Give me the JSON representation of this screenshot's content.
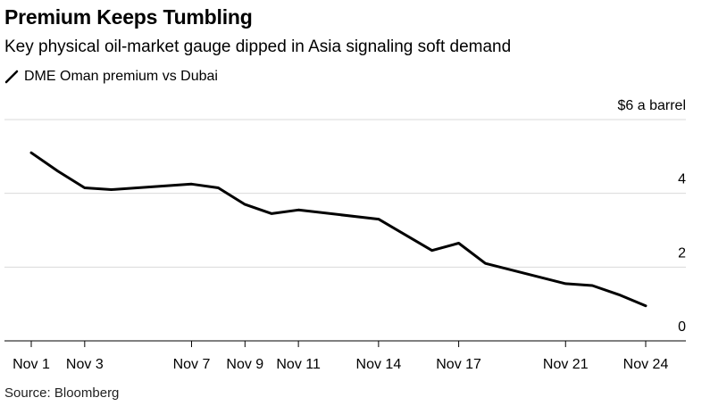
{
  "header": {
    "title": "Premium Keeps Tumbling",
    "subtitle": "Key physical oil-market gauge dipped in Asia signaling soft demand"
  },
  "legend": {
    "label": "DME Oman premium vs Dubai"
  },
  "source": "Source: Bloomberg",
  "colors": {
    "line": "#000000",
    "grid": "#d9d9d9",
    "axis": "#000000",
    "background": "#ffffff"
  },
  "chart_data": {
    "type": "line",
    "ylabel": "",
    "xlabel": "",
    "ylim": [
      0,
      6
    ],
    "y_ticks": [
      0,
      2,
      4,
      6
    ],
    "y_tick_labels": [
      "0",
      "2",
      "4",
      "$6 a barrel"
    ],
    "x_ticks": [
      "Nov 1",
      "Nov 3",
      "Nov 7",
      "Nov 9",
      "Nov 11",
      "Nov 14",
      "Nov 17",
      "Nov 21",
      "Nov 24"
    ],
    "x_tick_days": [
      1,
      3,
      7,
      9,
      11,
      14,
      17,
      21,
      24
    ],
    "x_range_days": [
      0,
      25
    ],
    "grid": true,
    "legend_position": "top-left",
    "series": [
      {
        "name": "DME Oman premium vs Dubai",
        "x": [
          "Nov 1",
          "Nov 2",
          "Nov 3",
          "Nov 4",
          "Nov 7",
          "Nov 8",
          "Nov 9",
          "Nov 10",
          "Nov 11",
          "Nov 14",
          "Nov 16",
          "Nov 17",
          "Nov 18",
          "Nov 21",
          "Nov 22",
          "Nov 23",
          "Nov 24"
        ],
        "values": [
          5.1,
          4.6,
          4.15,
          4.1,
          4.25,
          4.15,
          3.7,
          3.45,
          3.55,
          3.3,
          2.45,
          2.65,
          2.1,
          1.55,
          1.5,
          1.25,
          0.95
        ]
      }
    ]
  }
}
